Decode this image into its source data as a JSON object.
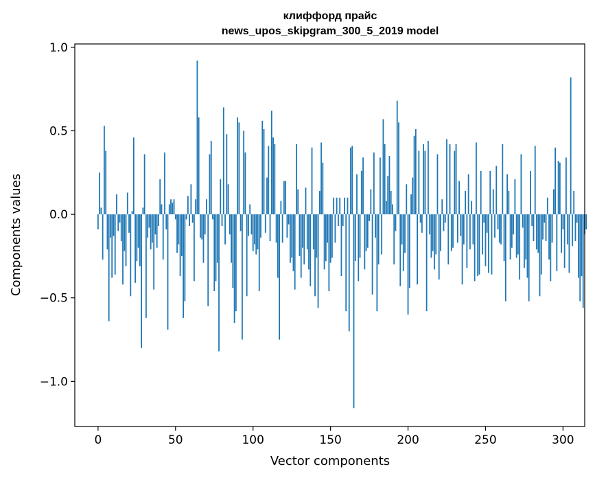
{
  "chart_data": {
    "type": "bar",
    "title": "клиффорд прайс",
    "subtitle": "news_upos_skipgram_300_5_2019 model",
    "xlabel": "Vector components",
    "ylabel": "Components values",
    "xlim": [
      -15,
      314
    ],
    "ylim": [
      -1.27,
      1.02
    ],
    "xticks": [
      0,
      50,
      100,
      150,
      200,
      250,
      300
    ],
    "xtick_labels": [
      "0",
      "50",
      "100",
      "150",
      "200",
      "250",
      "300"
    ],
    "yticks": [
      -1.0,
      -0.5,
      0.0,
      0.5,
      1.0
    ],
    "ytick_labels": [
      "−1.0",
      "−0.5",
      "0.0",
      "0.5",
      "1.0"
    ],
    "grid": false,
    "color": "#1f77b4",
    "values": [
      -0.09,
      0.25,
      0.04,
      -0.27,
      0.53,
      0.38,
      -0.21,
      -0.64,
      -0.14,
      -0.38,
      -0.13,
      -0.36,
      0.12,
      -0.1,
      -0.05,
      -0.16,
      -0.42,
      -0.22,
      -0.31,
      0.13,
      -0.11,
      -0.49,
      0.02,
      0.46,
      -0.41,
      -0.28,
      -0.2,
      -0.31,
      -0.8,
      0.04,
      0.36,
      -0.62,
      -0.14,
      -0.08,
      -0.21,
      -0.17,
      -0.45,
      -0.12,
      -0.2,
      -0.07,
      0.21,
      0.06,
      -0.27,
      0.37,
      -0.09,
      -0.69,
      0.06,
      0.09,
      0.07,
      0.09,
      -0.03,
      -0.23,
      -0.18,
      -0.37,
      -0.25,
      -0.62,
      -0.52,
      -0.03,
      0.11,
      -0.07,
      0.18,
      -0.05,
      -0.4,
      0.09,
      0.92,
      0.58,
      -0.14,
      -0.15,
      -0.29,
      -0.12,
      0.09,
      -0.55,
      0.36,
      0.44,
      -0.03,
      -0.46,
      -0.4,
      -0.29,
      -0.82,
      0.21,
      -0.07,
      0.64,
      -0.18,
      0.48,
      0.18,
      -0.12,
      -0.29,
      -0.44,
      -0.65,
      -0.58,
      0.58,
      0.55,
      -0.1,
      -0.75,
      0.5,
      0.37,
      -0.49,
      -0.13,
      0.06,
      -0.12,
      -0.22,
      -0.18,
      -0.24,
      -0.21,
      -0.46,
      -0.14,
      0.56,
      0.51,
      -0.11,
      0.22,
      0.41,
      -0.16,
      0.62,
      0.46,
      0.42,
      -0.17,
      -0.38,
      -0.75,
      0.08,
      -0.17,
      0.2,
      0.2,
      -0.14,
      -0.06,
      -0.29,
      -0.26,
      -0.34,
      -0.45,
      0.42,
      0.15,
      -0.25,
      -0.38,
      -0.2,
      -0.3,
      0.16,
      -0.21,
      -0.33,
      -0.43,
      0.4,
      -0.21,
      -0.49,
      -0.26,
      -0.56,
      0.14,
      0.43,
      0.31,
      -0.33,
      -0.28,
      -0.17,
      -0.46,
      -0.29,
      -0.26,
      0.1,
      -0.17,
      0.1,
      -0.07,
      0.1,
      -0.37,
      -0.07,
      0.1,
      -0.58,
      0.1,
      -0.7,
      0.4,
      0.41,
      -1.16,
      -0.28,
      0.24,
      -0.4,
      -0.26,
      0.26,
      0.34,
      -0.33,
      -0.22,
      -0.2,
      -0.04,
      0.15,
      -0.48,
      0.37,
      -0.14,
      -0.58,
      -0.3,
      0.34,
      -0.24,
      0.57,
      0.42,
      0.08,
      0.23,
      0.35,
      0.14,
      0.06,
      -0.3,
      -0.1,
      0.68,
      0.55,
      -0.43,
      -0.18,
      -0.34,
      -0.23,
      0.18,
      -0.6,
      -0.44,
      0.12,
      0.22,
      0.47,
      0.51,
      -0.42,
      0.38,
      -0.05,
      -0.11,
      0.42,
      0.38,
      -0.58,
      0.44,
      -0.12,
      -0.26,
      -0.22,
      -0.33,
      -0.24,
      0.36,
      -0.39,
      -0.22,
      0.09,
      -0.1,
      -0.05,
      0.45,
      -0.3,
      0.42,
      -0.22,
      -0.2,
      0.38,
      0.42,
      -0.17,
      0.2,
      -0.13,
      -0.42,
      -0.18,
      0.14,
      -0.32,
      0.24,
      -0.21,
      0.08,
      -0.18,
      -0.4,
      0.43,
      -0.37,
      -0.36,
      0.26,
      -0.24,
      -0.05,
      -0.31,
      -0.11,
      -0.35,
      0.26,
      -0.36,
      0.15,
      -0.14,
      0.29,
      -0.09,
      -0.17,
      -0.18,
      0.42,
      -0.28,
      -0.52,
      0.24,
      0.14,
      -0.27,
      -0.2,
      -0.12,
      0.21,
      -0.26,
      -0.24,
      -0.39,
      0.36,
      -0.08,
      -0.32,
      -0.27,
      -0.38,
      -0.52,
      0.26,
      -0.07,
      -0.16,
      0.41,
      -0.21,
      -0.23,
      -0.49,
      -0.36,
      -0.15,
      -0.05,
      -0.16,
      0.1,
      -0.27,
      -0.4,
      -0.17,
      0.15,
      0.4,
      -0.34,
      0.32,
      0.31,
      -0.23,
      -0.09,
      -0.32,
      0.34,
      -0.18,
      -0.35,
      0.82,
      -0.19,
      0.14,
      -0.16,
      -0.05,
      -0.38,
      -0.52,
      -0.37,
      -0.56,
      -0.12,
      -0.09
    ]
  }
}
